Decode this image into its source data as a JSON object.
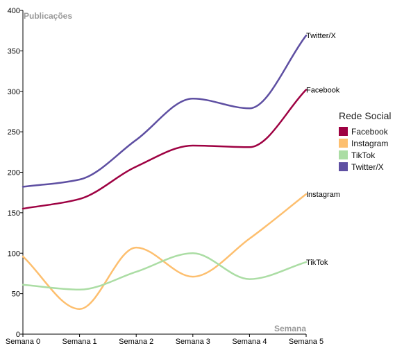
{
  "chart_data": {
    "type": "line",
    "ylabel": "Publicações",
    "xlabel": "Semana",
    "categories": [
      "Semana 0",
      "Semana 1",
      "Semana 2",
      "Semana 3",
      "Semana 4",
      "Semana 5"
    ],
    "ylim": [
      0,
      400
    ],
    "yticks": [
      0,
      50,
      100,
      150,
      200,
      250,
      300,
      350,
      400
    ],
    "grid": false,
    "legend_title": "Rede Social",
    "legend_position": "right",
    "series": [
      {
        "name": "Facebook",
        "color": "#9e0142",
        "values": [
          155,
          167,
          207,
          233,
          231,
          302
        ]
      },
      {
        "name": "Instagram",
        "color": "#fdbf6f",
        "values": [
          96,
          31,
          107,
          71,
          118,
          173
        ]
      },
      {
        "name": "TikTok",
        "color": "#abdda4",
        "values": [
          61,
          55,
          77,
          100,
          68,
          89
        ]
      },
      {
        "name": "Twitter/X",
        "color": "#5e4fa2",
        "values": [
          182,
          191,
          240,
          291,
          279,
          369
        ]
      }
    ]
  }
}
